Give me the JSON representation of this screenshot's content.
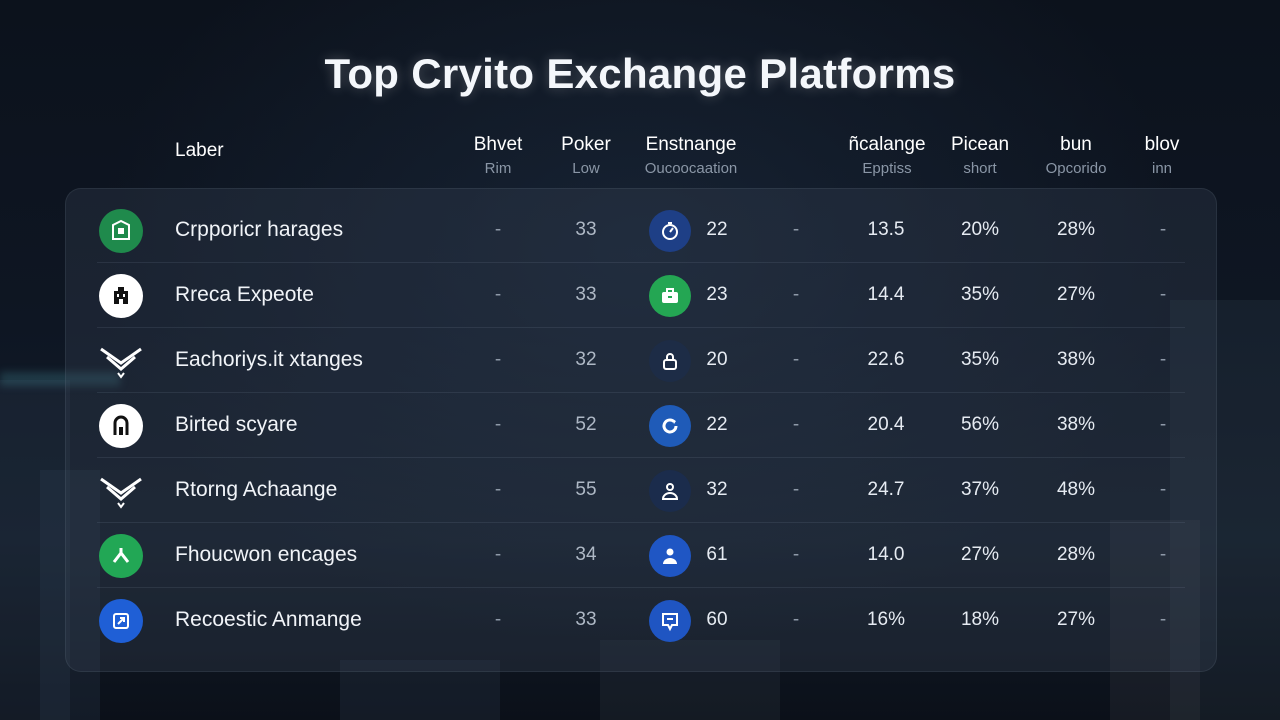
{
  "title": "Top Cryito Exchange Platforms",
  "headers": [
    {
      "title": "Laber",
      "sub": ""
    },
    {
      "title": "Bhvet",
      "sub": "Rim"
    },
    {
      "title": "Poker",
      "sub": "Low"
    },
    {
      "title": "Enstnange",
      "sub": "Oucoocaation"
    },
    {
      "title": "ñcalange",
      "sub": "Epptiss"
    },
    {
      "title": "Picean",
      "sub": "short"
    },
    {
      "title": "bun",
      "sub": "Opcorido"
    },
    {
      "title": "blov",
      "sub": "inn"
    }
  ],
  "rows": [
    {
      "name": "Crpporicr harages",
      "logo_icon": "shield-icon",
      "logo_color": "#1f8a4c",
      "c1": "-",
      "c2": "33",
      "icon": "timer-icon",
      "icon_color": "#1e3f86",
      "c3": "22",
      "c4": "-",
      "c5": "13.5",
      "c6": "20%",
      "c7": "28%",
      "c8": "-"
    },
    {
      "name": "Rreca Expeote",
      "logo_icon": "building-icon",
      "logo_color": "#ffffff",
      "c1": "-",
      "c2": "33",
      "icon": "wallet-icon",
      "icon_color": "#24a653",
      "c3": "23",
      "c4": "-",
      "c5": "14.4",
      "c6": "35%",
      "c7": "27%",
      "c8": "-"
    },
    {
      "name": "Eachoriys.it xtanges",
      "logo_icon": "chevron-wings-icon",
      "logo_color": "transparent",
      "c1": "-",
      "c2": "32",
      "icon": "lock-icon",
      "icon_color": "#1d2c46",
      "c3": "20",
      "c4": "-",
      "c5": "22.6",
      "c6": "35%",
      "c7": "38%",
      "c8": "-"
    },
    {
      "name": "Birted scyare",
      "logo_icon": "arch-icon",
      "logo_color": "#ffffff",
      "c1": "-",
      "c2": "52",
      "icon": "refresh-icon",
      "icon_color": "#1f5bb8",
      "c3": "22",
      "c4": "-",
      "c5": "20.4",
      "c6": "56%",
      "c7": "38%",
      "c8": "-"
    },
    {
      "name": "Rtorng Achaange",
      "logo_icon": "chevron-wings-icon",
      "logo_color": "transparent",
      "c1": "-",
      "c2": "55",
      "icon": "user-icon",
      "icon_color": "#1b2c4c",
      "c3": "32",
      "c4": "-",
      "c5": "24.7",
      "c6": "37%",
      "c7": "48%",
      "c8": "-"
    },
    {
      "name": "Fhoucwon encages",
      "logo_icon": "arrow-up-icon",
      "logo_color": "#22a755",
      "c1": "-",
      "c2": "34",
      "icon": "person-icon",
      "icon_color": "#1f56c4",
      "c3": "61",
      "c4": "-",
      "c5": "14.0",
      "c6": "27%",
      "c7": "28%",
      "c8": "-"
    },
    {
      "name": "Recoestic Anmange",
      "logo_icon": "exchange-icon",
      "logo_color": "#1f5fd6",
      "c1": "-",
      "c2": "33",
      "icon": "chat-icon",
      "icon_color": "#1f55c2",
      "c3": "60",
      "c4": "-",
      "c5": "16%",
      "c6": "18%",
      "c7": "27%",
      "c8": "-"
    }
  ]
}
